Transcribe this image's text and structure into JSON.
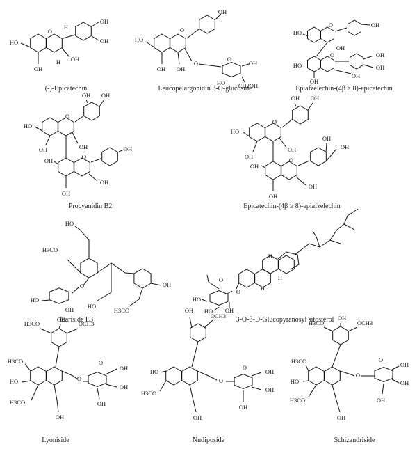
{
  "structures": [
    {
      "name": "(-)-Epicatechin",
      "atoms": [
        "HO",
        "O",
        "H",
        "OH",
        "OH",
        "OH",
        "OH",
        "H"
      ]
    },
    {
      "name": "Leucopelargonidin 3-O-glucoside",
      "atoms": [
        "HO",
        "O",
        "OH",
        "OH",
        "OH",
        "O",
        "O",
        "OH",
        "HO",
        "CH2OH"
      ]
    },
    {
      "name": "Epiafzelechin-(4β ≥ 8)-epicatechin",
      "atoms": [
        "HO",
        "O",
        "OH",
        "OH",
        "HO",
        "O",
        "OH",
        "OH",
        "OH",
        "OH"
      ]
    },
    {
      "name": "Procyanidin B2",
      "atoms": [
        "HO",
        "O",
        "OH",
        "OH",
        "OH",
        "OH",
        "OH",
        "O",
        "OH",
        "OH",
        "OH"
      ]
    },
    {
      "name": "Epicatechin-(4β ≥ 8)-epiafzelechin",
      "atoms": [
        "HO",
        "O",
        "OH",
        "OH",
        "OH",
        "OH",
        "OH",
        "O",
        "OH",
        "OH",
        "OH",
        "OH"
      ]
    },
    {
      "name": "Icariside E3",
      "atoms": [
        "HO",
        "H3CO",
        "O",
        "HO",
        "OH",
        "HO",
        "OH",
        "H3CO"
      ]
    },
    {
      "name": "3-O-β-D-Glucopyranosyl sitosterol",
      "atoms": [
        "H",
        "H",
        "H",
        "O",
        "O",
        "HO",
        "HO",
        "OH"
      ]
    },
    {
      "name": "Lyoniside",
      "atoms": [
        "H3CO",
        "OH",
        "OCH3",
        "H3CO",
        "HO",
        "H3CO",
        "O",
        "O",
        "OH",
        "OH",
        "OH",
        "OH"
      ]
    },
    {
      "name": "Nudiposide",
      "atoms": [
        "OH",
        "OCH3",
        "HO",
        "H3CO",
        "O",
        "O",
        "OH",
        "OH",
        "OH",
        "OH"
      ]
    },
    {
      "name": "Schizandriside",
      "atoms": [
        "H3CO",
        "OH",
        "OCH3",
        "H3CO",
        "HO",
        "H3CO",
        "O",
        "O",
        "OH",
        "OH",
        "OH",
        "OH"
      ]
    }
  ]
}
